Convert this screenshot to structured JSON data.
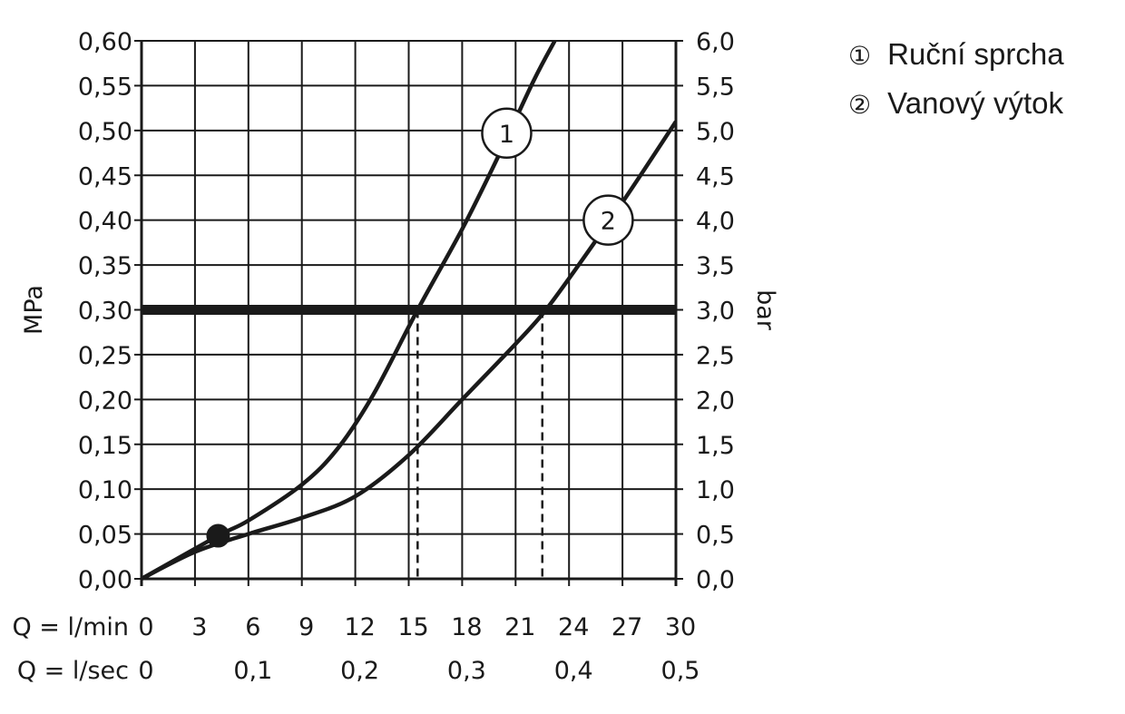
{
  "chart_data": {
    "type": "line",
    "title": "",
    "y_left": {
      "label": "MPa",
      "min": 0,
      "max": 0.6,
      "step": 0.05,
      "tick_labels": [
        "0,00",
        "0,05",
        "0,10",
        "0,15",
        "0,20",
        "0,25",
        "0,30",
        "0,35",
        "0,40",
        "0,45",
        "0,50",
        "0,55",
        "0,60"
      ]
    },
    "y_right": {
      "label": "bar",
      "min": 0,
      "max": 6,
      "step": 0.5,
      "tick_labels": [
        "0,0",
        "0,5",
        "1,0",
        "1,5",
        "2,0",
        "2,5",
        "3,0",
        "3,5",
        "4,0",
        "4,5",
        "5,0",
        "5,5",
        "6,0"
      ]
    },
    "x_lmin": {
      "label": "Q = l/min",
      "min": 0,
      "max": 30,
      "step": 3,
      "tick_labels": [
        "0",
        "3",
        "6",
        "9",
        "12",
        "15",
        "18",
        "21",
        "24",
        "27",
        "30"
      ]
    },
    "x_lsec": {
      "label": "Q = l/sec",
      "values": [
        0,
        0.1,
        0.2,
        0.3,
        0.4,
        0.5
      ],
      "tick_labels": [
        "0",
        "0,1",
        "0,2",
        "0,3",
        "0,4",
        "0,5"
      ]
    },
    "grid": true,
    "reference_line": {
      "y": 0.3
    },
    "series": [
      {
        "marker": "1",
        "x": [
          0,
          4.3,
          6,
          9,
          11,
          13,
          15.5,
          18,
          20,
          22,
          23.2
        ],
        "y": [
          0,
          0.048,
          0.065,
          0.105,
          0.145,
          0.205,
          0.3,
          0.39,
          0.47,
          0.555,
          0.6
        ]
      },
      {
        "marker": "2",
        "x": [
          0,
          3,
          6,
          9,
          12,
          15,
          18,
          21,
          22.5,
          24,
          27,
          30
        ],
        "y": [
          0,
          0.03,
          0.05,
          0.068,
          0.092,
          0.138,
          0.2,
          0.262,
          0.295,
          0.335,
          0.42,
          0.51
        ]
      }
    ],
    "series_markers": [
      {
        "text": "1",
        "x": 20.5,
        "y": 0.497
      },
      {
        "text": "2",
        "x": 26.2,
        "y": 0.4
      }
    ],
    "dashed_drops": [
      {
        "x": 15.5,
        "y": 0.3
      },
      {
        "x": 22.5,
        "y": 0.3
      }
    ],
    "dot": {
      "x": 4.3,
      "y": 0.048
    }
  },
  "legend": {
    "items": [
      {
        "marker": "①",
        "label": "Ruční sprcha"
      },
      {
        "marker": "②",
        "label": "Vanový výtok"
      }
    ]
  }
}
